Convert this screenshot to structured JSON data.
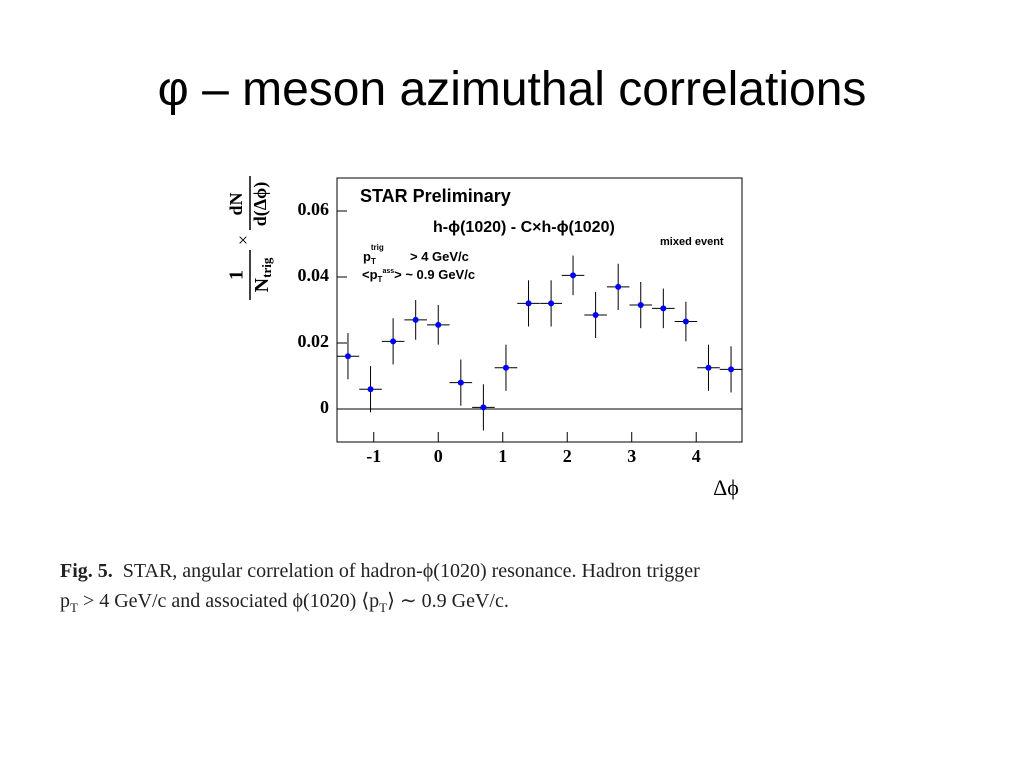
{
  "slide_title": "φ – meson azimuthal correlations",
  "chart_data": {
    "type": "errorbar",
    "x": [
      -1.4,
      -1.05,
      -0.7,
      -0.35,
      0,
      0.35,
      0.7,
      1.05,
      1.4,
      1.75,
      2.09,
      2.44,
      2.79,
      3.14,
      3.49,
      3.84,
      4.19,
      4.54
    ],
    "values": [
      0.016,
      0.006,
      0.0205,
      0.027,
      0.0255,
      0.008,
      0.0005,
      0.0125,
      0.032,
      0.032,
      0.0405,
      0.0285,
      0.037,
      0.0315,
      0.0305,
      0.0265,
      0.0125,
      0.012
    ],
    "errors": [
      0.007,
      0.007,
      0.007,
      0.006,
      0.006,
      0.007,
      0.007,
      0.007,
      0.007,
      0.007,
      0.006,
      0.007,
      0.007,
      0.007,
      0.006,
      0.006,
      0.007,
      0.007
    ],
    "color": "#0000ff",
    "xlim": [
      -1.57,
      4.71
    ],
    "ylim": [
      -0.01,
      0.07
    ],
    "xticks": [
      -1,
      0,
      1,
      2,
      3,
      4
    ],
    "yticks": [
      0,
      0.02,
      0.04,
      0.06
    ],
    "xlabel": "Δϕ",
    "ylabel": {
      "num1": "1",
      "den1": "N",
      "den1_sub": "trig",
      "times": "×",
      "num2": "dN",
      "den2": "d(Δϕ)"
    },
    "annotations": {
      "label": "STAR Preliminary",
      "pair": "h-ϕ(1020) - C×h-ϕ(1020)",
      "pair_sub": "mixed event",
      "trig": [
        "p",
        "T",
        "trig",
        "> 4 GeV/c"
      ],
      "ass": [
        "<p",
        "T",
        "ass",
        "> ~ 0.9 GeV/c"
      ]
    }
  },
  "caption": {
    "label": "Fig. 5.",
    "line1": "STAR, angular correlation of hadron-ϕ(1020) resonance.  Hadron trigger",
    "line2": [
      "p",
      "T",
      " > 4 GeV/c and associated ϕ(1020) ⟨p",
      "T",
      "⟩ ∼ 0.9 GeV/c."
    ]
  }
}
